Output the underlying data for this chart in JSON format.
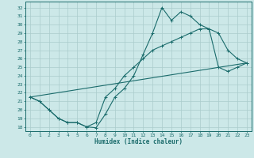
{
  "xlabel": "Humidex (Indice chaleur)",
  "xlim": [
    -0.5,
    23.5
  ],
  "ylim": [
    17.5,
    32.7
  ],
  "xticks": [
    0,
    1,
    2,
    3,
    4,
    5,
    6,
    7,
    8,
    9,
    10,
    11,
    12,
    13,
    14,
    15,
    16,
    17,
    18,
    19,
    20,
    21,
    22,
    23
  ],
  "yticks": [
    18,
    19,
    20,
    21,
    22,
    23,
    24,
    25,
    26,
    27,
    28,
    29,
    30,
    31,
    32
  ],
  "bg_color": "#cce8e8",
  "line_color": "#1a6b6b",
  "grid_color": "#aacccc",
  "line1_x": [
    0,
    1,
    2,
    3,
    4,
    5,
    6,
    7,
    8,
    9,
    10,
    11,
    12,
    13,
    14,
    15,
    16,
    17,
    18,
    19,
    20,
    21,
    22,
    23
  ],
  "line1_y": [
    21.5,
    21.0,
    20.0,
    19.0,
    18.5,
    18.5,
    18.0,
    17.9,
    19.5,
    21.5,
    22.5,
    24.0,
    26.5,
    29.0,
    32.0,
    30.5,
    31.5,
    31.0,
    30.0,
    29.5,
    29.0,
    27.0,
    26.0,
    25.5
  ],
  "line2_x": [
    0,
    1,
    2,
    3,
    4,
    5,
    6,
    7,
    8,
    9,
    10,
    11,
    12,
    13,
    14,
    15,
    16,
    17,
    18,
    19,
    20,
    21,
    22,
    23
  ],
  "line2_y": [
    21.5,
    21.0,
    20.0,
    19.0,
    18.5,
    18.5,
    18.0,
    18.5,
    21.5,
    22.5,
    24.0,
    25.0,
    26.0,
    27.0,
    27.5,
    28.0,
    28.5,
    29.0,
    29.5,
    29.5,
    25.0,
    24.5,
    25.0,
    25.5
  ],
  "line3_x": [
    0,
    23
  ],
  "line3_y": [
    21.5,
    25.5
  ]
}
